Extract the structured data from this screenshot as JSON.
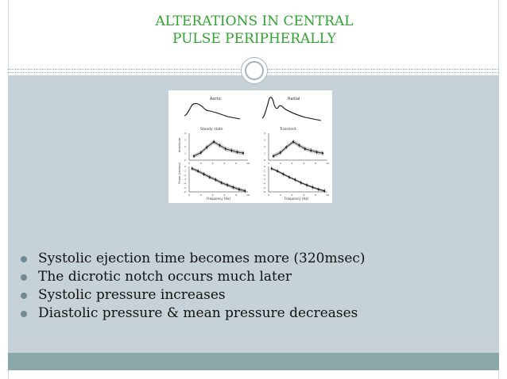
{
  "slide": {
    "title_line1": "ALTERATIONS IN CENTRAL",
    "title_line2": "PULSE PERIPHERALLY",
    "colors": {
      "title": "#2fa32f",
      "panel": "#c6d1d8",
      "footer": "#8aa8a7",
      "bullet": "#6f8a95"
    }
  },
  "figure": {
    "panel_aortic": "Aortic",
    "panel_radial": "Radial",
    "label_steady": "Steady state",
    "label_transient": "Transient",
    "ylabel_amplitude": "Amplitude",
    "ylabel_phase": "Phase (radians)",
    "xlabel": "Frequency (Hz)",
    "amp_ticks": [
      "4",
      "3",
      "2",
      "1",
      "0"
    ],
    "phase_ticks": [
      "0",
      "-1",
      "-2",
      "-3",
      "-4",
      "-5",
      "-6"
    ],
    "freq_ticks": [
      "0",
      "2",
      "4",
      "6",
      "8",
      "10"
    ]
  },
  "bullets": [
    "Systolic ejection time becomes more (320msec)",
    "The dicrotic notch occurs much later",
    "Systolic pressure increases",
    "Diastolic pressure & mean pressure decreases"
  ]
}
